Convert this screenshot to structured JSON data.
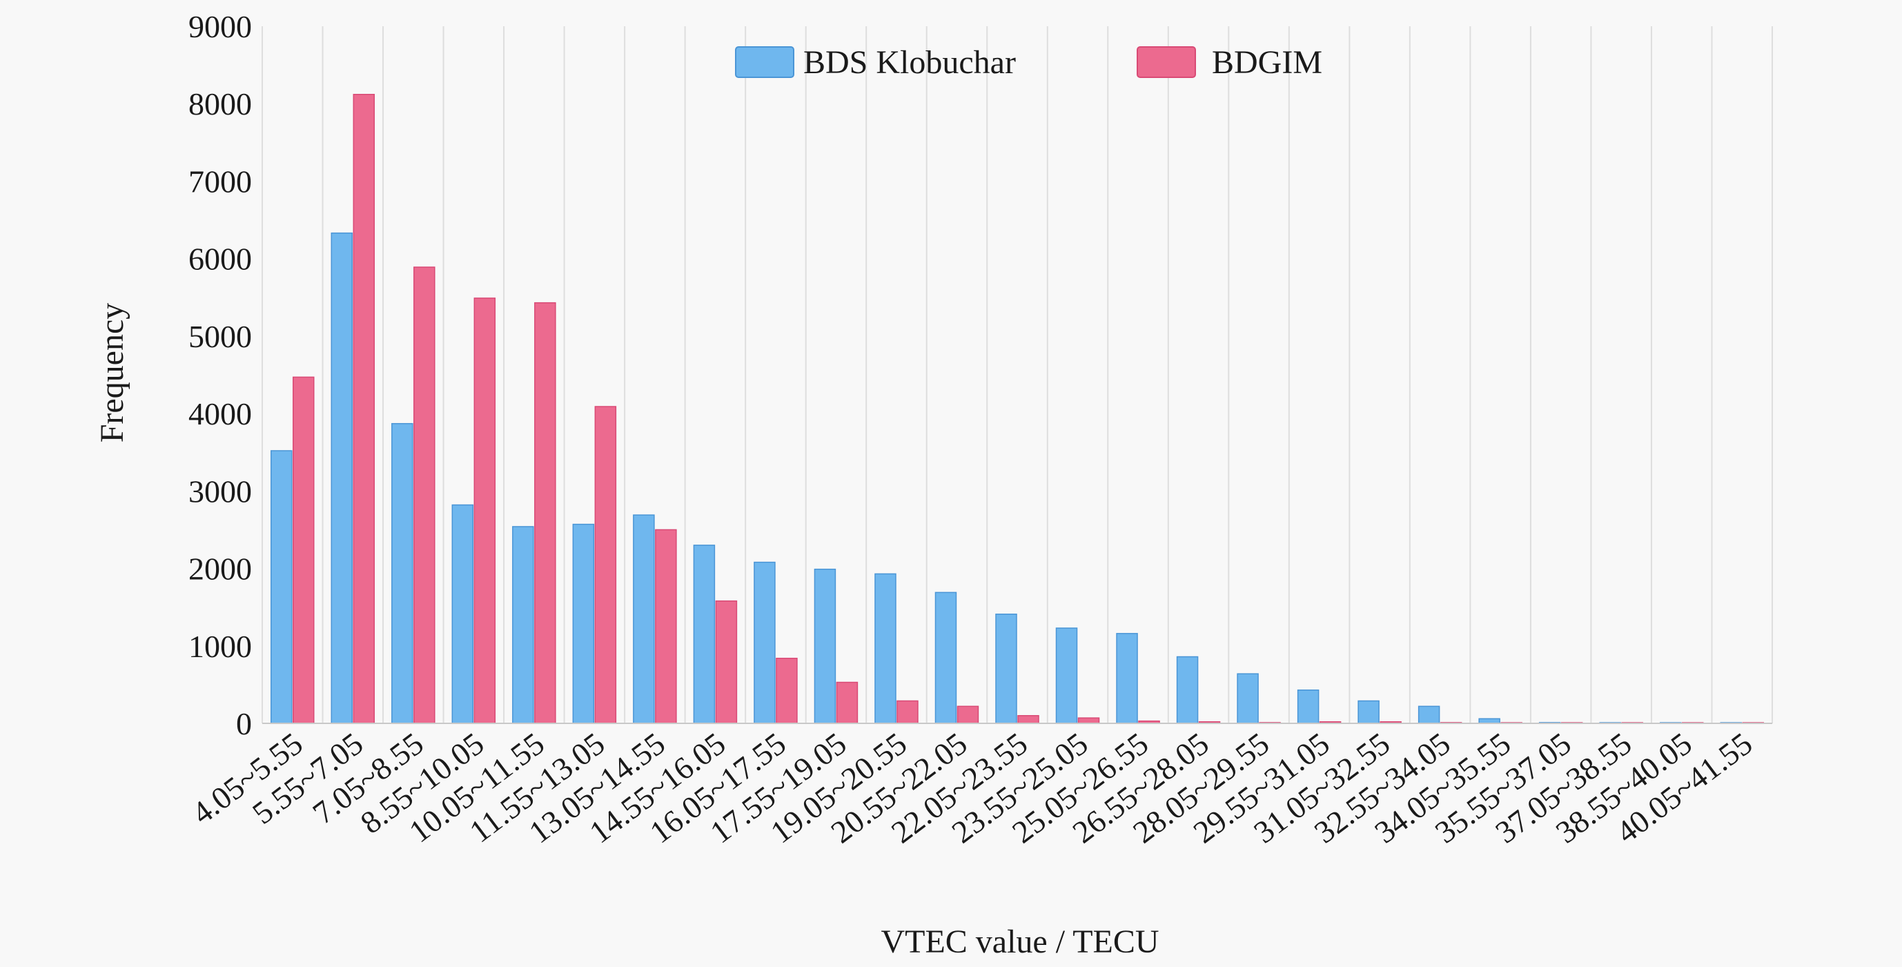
{
  "chart_data": {
    "type": "bar",
    "title": "",
    "xlabel": "VTEC value / TECU",
    "ylabel": "Frequency",
    "ylim": [
      0,
      9000
    ],
    "yticks": [
      0,
      1000,
      2000,
      3000,
      4000,
      5000,
      6000,
      7000,
      8000,
      9000
    ],
    "grid": "vertical",
    "legend_position": "top-center",
    "categories": [
      "4.05~5.55",
      "5.55~7.05",
      "7.05~8.55",
      "8.55~10.05",
      "10.05~11.55",
      "11.55~13.05",
      "13.05~14.55",
      "14.55~16.05",
      "16.05~17.55",
      "17.55~19.05",
      "19.05~20.55",
      "20.55~22.05",
      "22.05~23.55",
      "23.55~25.05",
      "25.05~26.55",
      "26.55~28.05",
      "28.05~29.55",
      "29.55~31.05",
      "31.05~32.55",
      "32.55~34.05",
      "34.05~35.55",
      "35.55~37.05",
      "37.05~38.55",
      "38.55~40.05",
      "40.05~41.55"
    ],
    "series": [
      {
        "name": "BDS Klobuchar",
        "color": "#6fb7ee",
        "edge_color": "#4a95d6",
        "values": [
          3520,
          6330,
          3870,
          2820,
          2540,
          2570,
          2690,
          2300,
          2080,
          1990,
          1930,
          1690,
          1410,
          1230,
          1160,
          860,
          640,
          430,
          290,
          220,
          60,
          10,
          5,
          5,
          5
        ]
      },
      {
        "name": "BDGIM",
        "color": "#ec6a8f",
        "edge_color": "#d94a75",
        "values": [
          4470,
          8120,
          5890,
          5490,
          5430,
          4090,
          2500,
          1580,
          840,
          530,
          290,
          220,
          100,
          70,
          30,
          20,
          10,
          20,
          20,
          10,
          5,
          5,
          5,
          5,
          5
        ]
      }
    ]
  }
}
